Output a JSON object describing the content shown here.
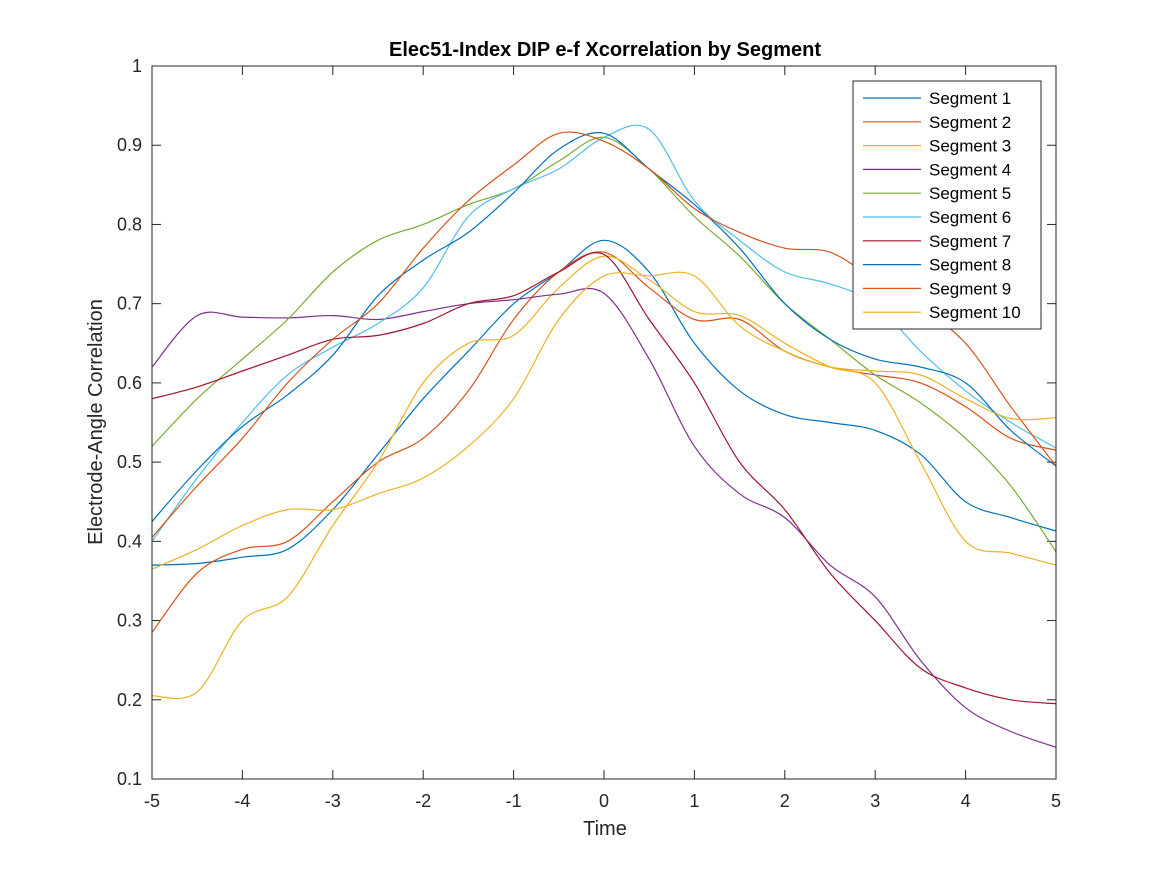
{
  "chart_data": {
    "type": "line",
    "title": "Elec51-Index DIP e-f Xcorrelation by Segment",
    "xlabel": "Time",
    "ylabel": "Electrode-Angle Correlation",
    "xlim": [
      -5,
      5
    ],
    "ylim": [
      0.1,
      1
    ],
    "xticks": [
      -5,
      -4,
      -3,
      -2,
      -1,
      0,
      1,
      2,
      3,
      4,
      5
    ],
    "yticks": [
      0.1,
      0.2,
      0.3,
      0.4,
      0.5,
      0.6,
      0.7,
      0.8,
      0.9,
      1
    ],
    "ytick_labels": [
      "0.1",
      "0.2",
      "0.3",
      "0.4",
      "0.5",
      "0.6",
      "0.7",
      "0.8",
      "0.9",
      "1"
    ],
    "grid": false,
    "legend_position": "top-right",
    "x": [
      -5,
      -4.5,
      -4,
      -3.5,
      -3,
      -2.5,
      -2,
      -1.5,
      -1,
      -0.5,
      0,
      0.5,
      1,
      1.5,
      2,
      2.5,
      3,
      3.5,
      4,
      4.5,
      5
    ],
    "series": [
      {
        "name": "Segment 1",
        "color": "#0072BD",
        "values": [
          0.37,
          0.372,
          0.38,
          0.39,
          0.44,
          0.51,
          0.58,
          0.64,
          0.7,
          0.74,
          0.78,
          0.74,
          0.65,
          0.59,
          0.56,
          0.55,
          0.54,
          0.51,
          0.45,
          0.43,
          0.413
        ]
      },
      {
        "name": "Segment 2",
        "color": "#D95319",
        "values": [
          0.285,
          0.36,
          0.39,
          0.4,
          0.45,
          0.5,
          0.53,
          0.59,
          0.68,
          0.74,
          0.765,
          0.72,
          0.68,
          0.68,
          0.64,
          0.62,
          0.61,
          0.6,
          0.57,
          0.53,
          0.515
        ]
      },
      {
        "name": "Segment 3",
        "color": "#EDB120",
        "values": [
          0.205,
          0.21,
          0.3,
          0.33,
          0.42,
          0.5,
          0.6,
          0.65,
          0.66,
          0.72,
          0.76,
          0.73,
          0.69,
          0.685,
          0.65,
          0.62,
          0.6,
          0.5,
          0.4,
          0.385,
          0.37
        ]
      },
      {
        "name": "Segment 4",
        "color": "#7E2F8E",
        "values": [
          0.62,
          0.685,
          0.683,
          0.682,
          0.685,
          0.68,
          0.69,
          0.7,
          0.705,
          0.712,
          0.713,
          0.63,
          0.52,
          0.46,
          0.43,
          0.37,
          0.33,
          0.25,
          0.19,
          0.16,
          0.14
        ]
      },
      {
        "name": "Segment 5",
        "color": "#77AC30",
        "values": [
          0.52,
          0.58,
          0.63,
          0.68,
          0.74,
          0.78,
          0.8,
          0.825,
          0.845,
          0.88,
          0.91,
          0.87,
          0.81,
          0.76,
          0.7,
          0.655,
          0.61,
          0.575,
          0.53,
          0.47,
          0.387
        ]
      },
      {
        "name": "Segment 6",
        "color": "#4DBEEE",
        "values": [
          0.4,
          0.48,
          0.55,
          0.61,
          0.645,
          0.675,
          0.72,
          0.81,
          0.845,
          0.87,
          0.91,
          0.92,
          0.83,
          0.78,
          0.74,
          0.725,
          0.7,
          0.64,
          0.59,
          0.55,
          0.518
        ]
      },
      {
        "name": "Segment 7",
        "color": "#A2142F",
        "values": [
          0.58,
          0.595,
          0.615,
          0.635,
          0.655,
          0.66,
          0.675,
          0.7,
          0.71,
          0.74,
          0.762,
          0.68,
          0.6,
          0.5,
          0.44,
          0.36,
          0.3,
          0.24,
          0.215,
          0.2,
          0.195
        ]
      },
      {
        "name": "Segment 8",
        "color": "#0072BD",
        "values": [
          0.425,
          0.49,
          0.545,
          0.585,
          0.635,
          0.71,
          0.755,
          0.79,
          0.84,
          0.895,
          0.915,
          0.87,
          0.825,
          0.77,
          0.7,
          0.655,
          0.63,
          0.62,
          0.6,
          0.54,
          0.495
        ]
      },
      {
        "name": "Segment 9",
        "color": "#D95319",
        "values": [
          0.405,
          0.47,
          0.53,
          0.6,
          0.655,
          0.7,
          0.77,
          0.83,
          0.875,
          0.915,
          0.905,
          0.87,
          0.82,
          0.79,
          0.77,
          0.765,
          0.73,
          0.695,
          0.65,
          0.57,
          0.495
        ]
      },
      {
        "name": "Segment 10",
        "color": "#EDB120",
        "values": [
          0.365,
          0.39,
          0.42,
          0.44,
          0.44,
          0.46,
          0.48,
          0.52,
          0.58,
          0.68,
          0.735,
          0.735,
          0.735,
          0.672,
          0.64,
          0.62,
          0.615,
          0.61,
          0.58,
          0.555,
          0.556
        ]
      }
    ]
  }
}
